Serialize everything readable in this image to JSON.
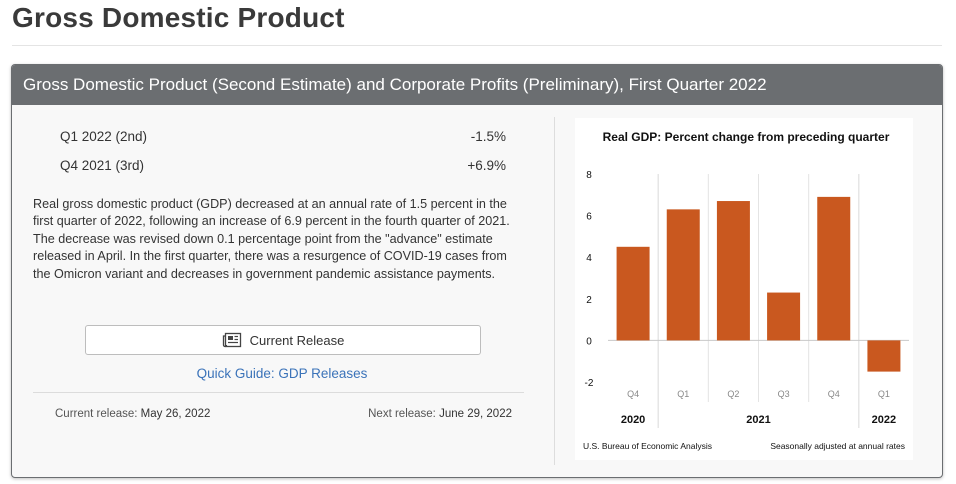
{
  "page": {
    "title": "Gross Domestic Product"
  },
  "panel": {
    "header": "Gross Domestic Product (Second Estimate) and Corporate Profits (Preliminary), First Quarter 2022",
    "stats": [
      {
        "label": "Q1 2022 (2nd)",
        "value": "-1.5%"
      },
      {
        "label": "Q4 2021 (3rd)",
        "value": "+6.9%"
      }
    ],
    "description": "Real gross domestic product (GDP) decreased at an annual rate of 1.5 percent in the first quarter of 2022, following an increase of 6.9 percent in the fourth quarter of 2021. The decrease was revised down 0.1 percentage point from the \"advance\" estimate released in April. In the first quarter, there was a resurgence of COVID-19 cases from the Omicron variant and decreases in government pandemic assistance payments.",
    "release_button": {
      "label": "Current Release",
      "icon": "newspaper-icon"
    },
    "quick_guide": "Quick Guide: GDP Releases",
    "current_release": {
      "label": "Current release:",
      "date": "May 26, 2022"
    },
    "next_release": {
      "label": "Next release:",
      "date": "June 29, 2022"
    }
  },
  "chart_data": {
    "type": "bar",
    "title": "Real GDP:  Percent change from preceding quarter",
    "categories": [
      "Q4",
      "Q1",
      "Q2",
      "Q3",
      "Q4",
      "Q1"
    ],
    "year_labels": [
      {
        "label": "2020",
        "category_index": 0
      },
      {
        "label": "2021",
        "category_index": 2.5
      },
      {
        "label": "2022",
        "category_index": 5
      }
    ],
    "year_groups": [
      [
        0,
        0
      ],
      [
        1,
        4
      ],
      [
        5,
        5
      ]
    ],
    "values": [
      4.5,
      6.3,
      6.7,
      2.3,
      6.9,
      -1.5
    ],
    "ylim": [
      -2,
      8
    ],
    "yticks": [
      8,
      6,
      4,
      2,
      0,
      -2
    ],
    "grid": "vertical",
    "bar_color": "#c9581f",
    "source": "U.S. Bureau of Economic Analysis",
    "note": "Seasonally adjusted at annual rates"
  }
}
